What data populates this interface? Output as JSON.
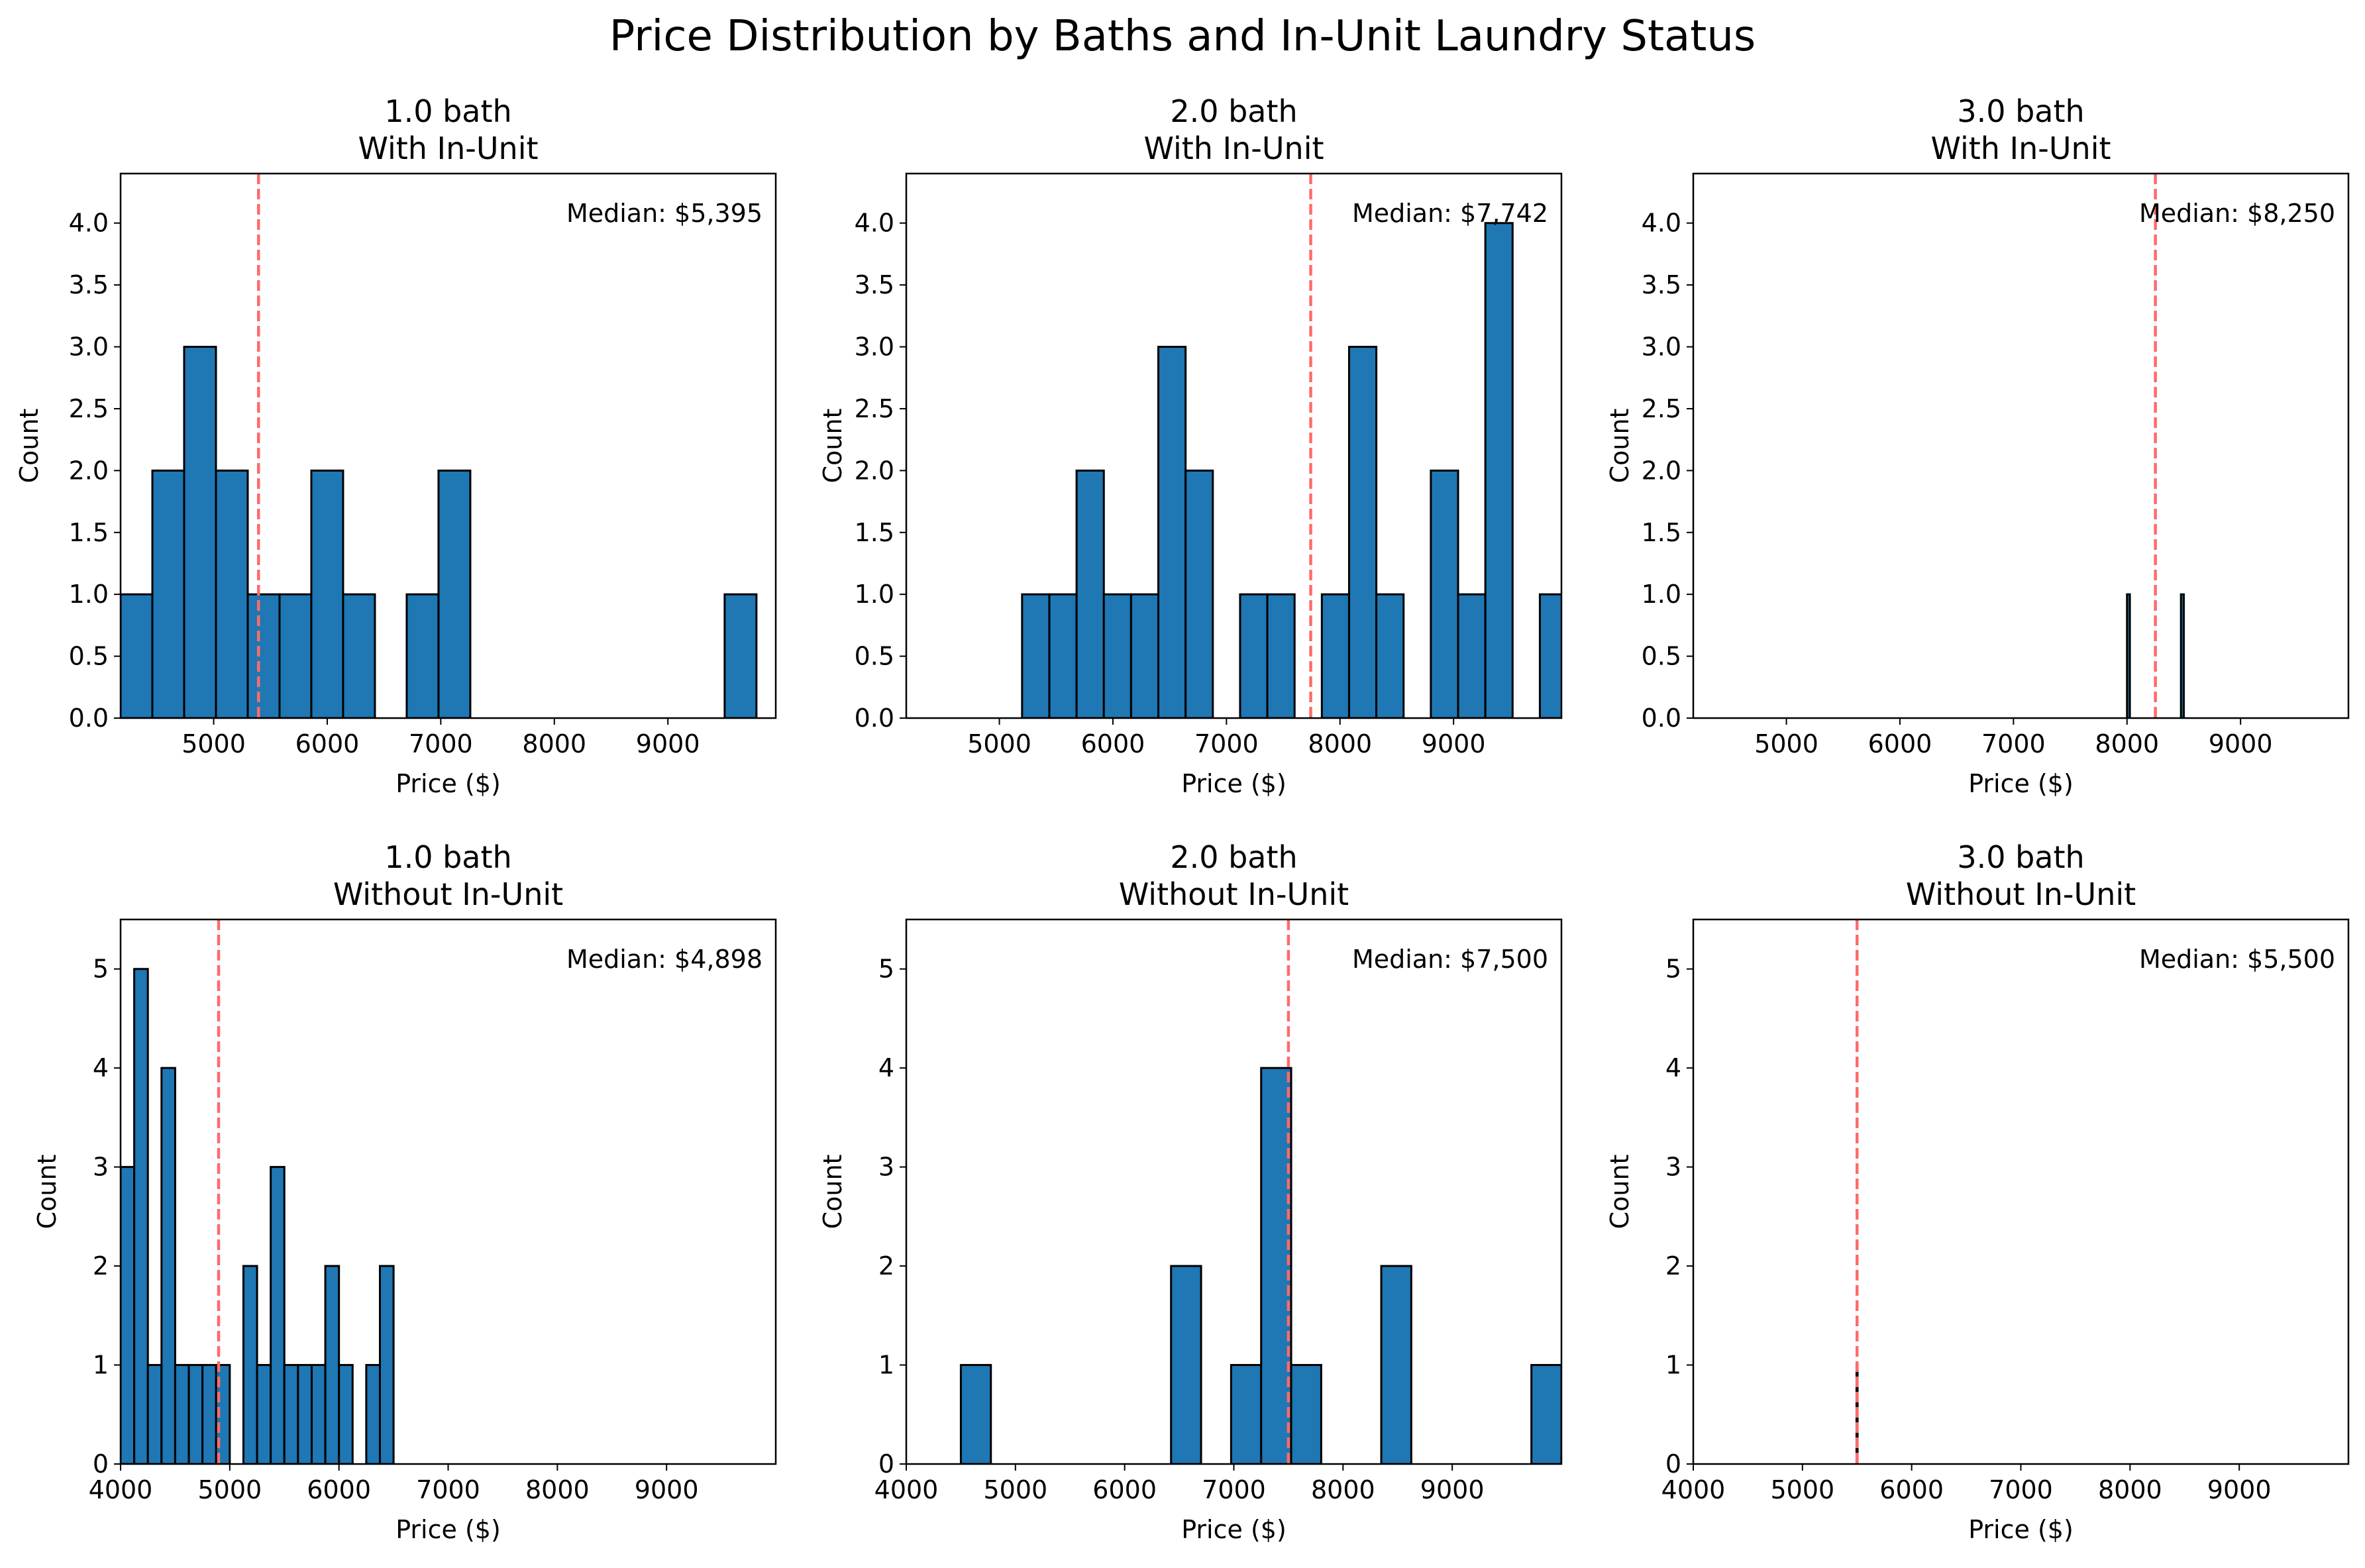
{
  "title": "Price Distribution by Baths and In-Unit Laundry Status",
  "colors": {
    "bar": "#1f77b4",
    "edge": "#000000",
    "median": "#ff6b6b"
  },
  "chart_data": [
    {
      "type": "bar",
      "title": "1.0 bath",
      "subtitle": "With In-Unit",
      "xlabel": "Price ($)",
      "ylabel": "Count",
      "xlim": [
        4180,
        9950
      ],
      "ylim": [
        0,
        4.4
      ],
      "xticks": [
        "5000",
        "6000",
        "7000",
        "8000",
        "9000"
      ],
      "yticks": [
        "0.0",
        "0.5",
        "1.0",
        "1.5",
        "2.0",
        "2.5",
        "3.0",
        "3.5",
        "4.0"
      ],
      "bins": [
        [
          4180,
          4460,
          1
        ],
        [
          4460,
          4740,
          2
        ],
        [
          4740,
          5020,
          3
        ],
        [
          5020,
          5300,
          2
        ],
        [
          5300,
          5580,
          1
        ],
        [
          5580,
          5860,
          1
        ],
        [
          5860,
          6140,
          2
        ],
        [
          6140,
          6420,
          1
        ],
        [
          6420,
          6700,
          0
        ],
        [
          6700,
          6980,
          1
        ],
        [
          6980,
          7260,
          2
        ],
        [
          7260,
          7540,
          0
        ],
        [
          7540,
          7820,
          0
        ],
        [
          7820,
          8100,
          0
        ],
        [
          8100,
          8380,
          0
        ],
        [
          8380,
          8660,
          0
        ],
        [
          8660,
          8940,
          0
        ],
        [
          8940,
          9220,
          0
        ],
        [
          9220,
          9500,
          0
        ],
        [
          9500,
          9780,
          1
        ]
      ],
      "median": 5395,
      "median_label": "Median: $5,395"
    },
    {
      "type": "bar",
      "title": "2.0 bath",
      "subtitle": "With In-Unit",
      "xlabel": "Price ($)",
      "ylabel": "Count",
      "xlim": [
        4180,
        9950
      ],
      "ylim": [
        0,
        4.4
      ],
      "xticks": [
        "5000",
        "6000",
        "7000",
        "8000",
        "9000"
      ],
      "yticks": [
        "0.0",
        "0.5",
        "1.0",
        "1.5",
        "2.0",
        "2.5",
        "3.0",
        "3.5",
        "4.0"
      ],
      "bins": [
        [
          5200,
          5440,
          1
        ],
        [
          5440,
          5680,
          1
        ],
        [
          5680,
          5920,
          2
        ],
        [
          5920,
          6160,
          1
        ],
        [
          6160,
          6400,
          1
        ],
        [
          6400,
          6640,
          3
        ],
        [
          6640,
          6880,
          2
        ],
        [
          6880,
          7120,
          0
        ],
        [
          7120,
          7360,
          1
        ],
        [
          7360,
          7600,
          1
        ],
        [
          7600,
          7840,
          0
        ],
        [
          7840,
          8080,
          1
        ],
        [
          8080,
          8320,
          3
        ],
        [
          8320,
          8560,
          1
        ],
        [
          8560,
          8800,
          0
        ],
        [
          8800,
          9040,
          2
        ],
        [
          9040,
          9280,
          1
        ],
        [
          9280,
          9520,
          4
        ],
        [
          9520,
          9760,
          0
        ],
        [
          9760,
          10000,
          1
        ]
      ],
      "median": 7742,
      "median_label": "Median: $7,742"
    },
    {
      "type": "bar",
      "title": "3.0 bath",
      "subtitle": "With In-Unit",
      "xlabel": "Price ($)",
      "ylabel": "Count",
      "xlim": [
        4180,
        9950
      ],
      "ylim": [
        0,
        4.4
      ],
      "xticks": [
        "5000",
        "6000",
        "7000",
        "8000",
        "9000"
      ],
      "yticks": [
        "0.0",
        "0.5",
        "1.0",
        "1.5",
        "2.0",
        "2.5",
        "3.0",
        "3.5",
        "4.0"
      ],
      "bins": [
        [
          8000,
          8025,
          1
        ],
        [
          8475,
          8500,
          1
        ]
      ],
      "median": 8250,
      "median_label": "Median: $8,250"
    },
    {
      "type": "bar",
      "title": "1.0 bath",
      "subtitle": "Without In-Unit",
      "xlabel": "Price ($)",
      "ylabel": "Count",
      "xlim": [
        4000,
        10000
      ],
      "ylim": [
        0,
        5.5
      ],
      "xticks": [
        "4000",
        "5000",
        "6000",
        "7000",
        "8000",
        "9000"
      ],
      "yticks": [
        "0",
        "1",
        "2",
        "3",
        "4",
        "5"
      ],
      "bins": [
        [
          4000,
          4125,
          3
        ],
        [
          4125,
          4250,
          5
        ],
        [
          4250,
          4375,
          1
        ],
        [
          4375,
          4500,
          4
        ],
        [
          4500,
          4625,
          1
        ],
        [
          4625,
          4750,
          1
        ],
        [
          4750,
          4875,
          1
        ],
        [
          4875,
          5000,
          1
        ],
        [
          5000,
          5125,
          0
        ],
        [
          5125,
          5250,
          2
        ],
        [
          5250,
          5375,
          1
        ],
        [
          5375,
          5500,
          3
        ],
        [
          5500,
          5625,
          1
        ],
        [
          5625,
          5750,
          1
        ],
        [
          5750,
          5875,
          1
        ],
        [
          5875,
          6000,
          2
        ],
        [
          6000,
          6125,
          1
        ],
        [
          6125,
          6250,
          0
        ],
        [
          6250,
          6375,
          1
        ],
        [
          6375,
          6500,
          2
        ]
      ],
      "median": 4898,
      "median_label": "Median: $4,898"
    },
    {
      "type": "bar",
      "title": "2.0 bath",
      "subtitle": "Without In-Unit",
      "xlabel": "Price ($)",
      "ylabel": "Count",
      "xlim": [
        4000,
        10000
      ],
      "ylim": [
        0,
        5.5
      ],
      "xticks": [
        "4000",
        "5000",
        "6000",
        "7000",
        "8000",
        "9000"
      ],
      "yticks": [
        "0",
        "1",
        "2",
        "3",
        "4",
        "5"
      ],
      "bins": [
        [
          4500,
          4775,
          1
        ],
        [
          4775,
          5050,
          0
        ],
        [
          5050,
          5325,
          0
        ],
        [
          5325,
          5600,
          0
        ],
        [
          5600,
          5875,
          0
        ],
        [
          5875,
          6150,
          0
        ],
        [
          6150,
          6425,
          0
        ],
        [
          6425,
          6700,
          2
        ],
        [
          6700,
          6975,
          0
        ],
        [
          6975,
          7250,
          1
        ],
        [
          7250,
          7525,
          4
        ],
        [
          7525,
          7800,
          1
        ],
        [
          7800,
          8075,
          0
        ],
        [
          8075,
          8350,
          0
        ],
        [
          8350,
          8625,
          2
        ],
        [
          8625,
          8900,
          0
        ],
        [
          8900,
          9175,
          0
        ],
        [
          9175,
          9450,
          0
        ],
        [
          9450,
          9725,
          0
        ],
        [
          9725,
          10000,
          1
        ]
      ],
      "median": 7500,
      "median_label": "Median: $7,500"
    },
    {
      "type": "bar",
      "title": "3.0 bath",
      "subtitle": "Without In-Unit",
      "xlabel": "Price ($)",
      "ylabel": "Count",
      "xlim": [
        4000,
        10000
      ],
      "ylim": [
        0,
        5.5
      ],
      "xticks": [
        "4000",
        "5000",
        "6000",
        "7000",
        "8000",
        "9000"
      ],
      "yticks": [
        "0",
        "1",
        "2",
        "3",
        "4",
        "5"
      ],
      "bins": [
        [
          5495,
          5505,
          1
        ]
      ],
      "median": 5500,
      "median_label": "Median: $5,500"
    }
  ]
}
